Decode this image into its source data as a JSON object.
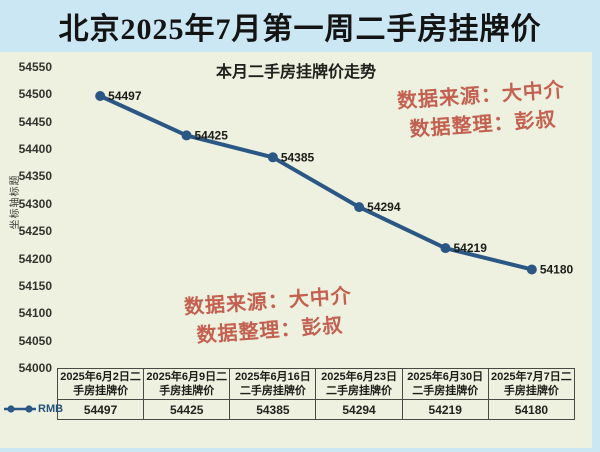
{
  "title": "北京2025年7月第一周二手房挂牌价",
  "chart_data": {
    "type": "line",
    "title": "本月二手房挂牌价走势",
    "y_axis_title": "坐标轴标题",
    "categories": [
      "2025年6月2日二手房挂牌价",
      "2025年6月9日二手房挂牌价",
      "2025年6月16日二手房挂牌价",
      "2025年6月23日二手房挂牌价",
      "2025年6月30日二手房挂牌价",
      "2025年7月7日二手房挂牌价"
    ],
    "series": [
      {
        "name": "RMB",
        "values": [
          54497,
          54425,
          54385,
          54294,
          54219,
          54180
        ]
      }
    ],
    "ylim": [
      54000,
      54550
    ],
    "y_tick_step": 50,
    "grid": false,
    "legend_position": "bottom-left",
    "data_labels": true,
    "data_table": true
  },
  "watermark": {
    "line1": "数据来源：大中介",
    "line2": "数据整理：彭叔"
  },
  "colors": {
    "page_bg": "#cbe7f4",
    "panel_bg": "#eef0e0",
    "line": "#2b5784",
    "watermark": "#c4604f"
  }
}
